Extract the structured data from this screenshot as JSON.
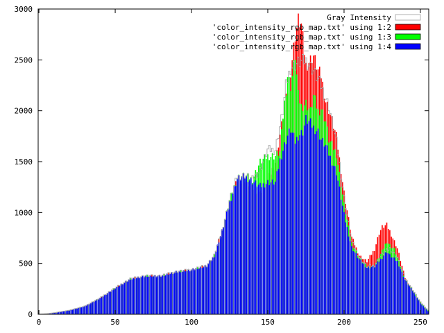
{
  "chart_data": {
    "type": "bar",
    "title": "",
    "xlabel": "",
    "ylabel": "",
    "xlim": [
      0,
      255
    ],
    "ylim": [
      0,
      3000
    ],
    "x_ticks": [
      "0",
      "50",
      "100",
      "150",
      "200",
      "250"
    ],
    "y_ticks": [
      "0",
      "500",
      "1000",
      "1500",
      "2000",
      "2500",
      "3000"
    ],
    "grid": false,
    "legend_position": "top-right",
    "series_points": [
      {
        "name": "Gray Intensity",
        "color": "#b0b0b0",
        "style": "outline-step",
        "points": [
          [
            0,
            0
          ],
          [
            5,
            5
          ],
          [
            10,
            15
          ],
          [
            20,
            40
          ],
          [
            30,
            80
          ],
          [
            40,
            160
          ],
          [
            50,
            260
          ],
          [
            60,
            350
          ],
          [
            70,
            380
          ],
          [
            80,
            380
          ],
          [
            90,
            420
          ],
          [
            100,
            440
          ],
          [
            110,
            480
          ],
          [
            115,
            580
          ],
          [
            120,
            820
          ],
          [
            125,
            1120
          ],
          [
            130,
            1350
          ],
          [
            135,
            1370
          ],
          [
            140,
            1330
          ],
          [
            145,
            1420
          ],
          [
            150,
            1620
          ],
          [
            155,
            1620
          ],
          [
            160,
            2000
          ],
          [
            162,
            2250
          ],
          [
            165,
            2430
          ],
          [
            170,
            2480
          ],
          [
            175,
            2500
          ],
          [
            180,
            2400
          ],
          [
            185,
            2250
          ],
          [
            190,
            2050
          ],
          [
            195,
            1700
          ],
          [
            200,
            1150
          ],
          [
            205,
            720
          ],
          [
            210,
            560
          ],
          [
            215,
            470
          ],
          [
            220,
            480
          ],
          [
            225,
            590
          ],
          [
            230,
            650
          ],
          [
            235,
            560
          ],
          [
            240,
            350
          ],
          [
            245,
            240
          ],
          [
            250,
            120
          ],
          [
            255,
            40
          ]
        ]
      },
      {
        "name": "'color_intensity_rgb_map.txt' using 1:2",
        "color": "#ff0000",
        "style": "bar",
        "points": [
          [
            0,
            0
          ],
          [
            5,
            5
          ],
          [
            10,
            15
          ],
          [
            20,
            40
          ],
          [
            30,
            80
          ],
          [
            40,
            160
          ],
          [
            50,
            260
          ],
          [
            60,
            350
          ],
          [
            70,
            380
          ],
          [
            80,
            380
          ],
          [
            90,
            420
          ],
          [
            100,
            440
          ],
          [
            110,
            480
          ],
          [
            115,
            580
          ],
          [
            120,
            820
          ],
          [
            125,
            1100
          ],
          [
            130,
            1320
          ],
          [
            135,
            1330
          ],
          [
            140,
            1250
          ],
          [
            145,
            1200
          ],
          [
            150,
            1320
          ],
          [
            155,
            1500
          ],
          [
            160,
            1950
          ],
          [
            163,
            2200
          ],
          [
            165,
            2400
          ],
          [
            168,
            2750
          ],
          [
            170,
            2900
          ],
          [
            172,
            2850
          ],
          [
            175,
            2450
          ],
          [
            180,
            2550
          ],
          [
            183,
            2400
          ],
          [
            185,
            2350
          ],
          [
            188,
            2100
          ],
          [
            190,
            2020
          ],
          [
            195,
            1750
          ],
          [
            200,
            1200
          ],
          [
            205,
            760
          ],
          [
            210,
            580
          ],
          [
            215,
            520
          ],
          [
            220,
            640
          ],
          [
            223,
            800
          ],
          [
            225,
            860
          ],
          [
            228,
            880
          ],
          [
            230,
            820
          ],
          [
            235,
            650
          ],
          [
            240,
            360
          ],
          [
            245,
            240
          ],
          [
            250,
            120
          ],
          [
            255,
            40
          ]
        ]
      },
      {
        "name": "'color_intensity_rgb_map.txt' using 1:3",
        "color": "#00ff00",
        "style": "bar",
        "points": [
          [
            0,
            0
          ],
          [
            5,
            5
          ],
          [
            10,
            15
          ],
          [
            20,
            40
          ],
          [
            30,
            80
          ],
          [
            40,
            160
          ],
          [
            50,
            260
          ],
          [
            60,
            350
          ],
          [
            70,
            380
          ],
          [
            80,
            380
          ],
          [
            90,
            420
          ],
          [
            100,
            440
          ],
          [
            110,
            480
          ],
          [
            115,
            580
          ],
          [
            120,
            820
          ],
          [
            125,
            1120
          ],
          [
            130,
            1350
          ],
          [
            135,
            1370
          ],
          [
            140,
            1330
          ],
          [
            145,
            1500
          ],
          [
            150,
            1560
          ],
          [
            155,
            1560
          ],
          [
            158,
            1600
          ],
          [
            160,
            1950
          ],
          [
            163,
            2350
          ],
          [
            165,
            2250
          ],
          [
            168,
            2550
          ],
          [
            170,
            2150
          ],
          [
            172,
            2050
          ],
          [
            175,
            2080
          ],
          [
            178,
            2000
          ],
          [
            180,
            2150
          ],
          [
            183,
            2000
          ],
          [
            185,
            2030
          ],
          [
            188,
            1900
          ],
          [
            190,
            1720
          ],
          [
            195,
            1580
          ],
          [
            200,
            1080
          ],
          [
            205,
            700
          ],
          [
            210,
            560
          ],
          [
            215,
            470
          ],
          [
            220,
            480
          ],
          [
            225,
            620
          ],
          [
            228,
            720
          ],
          [
            230,
            680
          ],
          [
            233,
            640
          ],
          [
            235,
            560
          ],
          [
            240,
            350
          ],
          [
            245,
            240
          ],
          [
            250,
            120
          ],
          [
            255,
            40
          ]
        ]
      },
      {
        "name": "'color_intensity_rgb_map.txt' using 1:4",
        "color": "#0000ff",
        "style": "bar",
        "points": [
          [
            0,
            0
          ],
          [
            5,
            5
          ],
          [
            10,
            15
          ],
          [
            20,
            40
          ],
          [
            30,
            80
          ],
          [
            40,
            160
          ],
          [
            50,
            260
          ],
          [
            60,
            350
          ],
          [
            70,
            380
          ],
          [
            80,
            380
          ],
          [
            90,
            420
          ],
          [
            100,
            440
          ],
          [
            110,
            480
          ],
          [
            115,
            580
          ],
          [
            120,
            820
          ],
          [
            125,
            1100
          ],
          [
            130,
            1340
          ],
          [
            135,
            1360
          ],
          [
            140,
            1310
          ],
          [
            145,
            1260
          ],
          [
            150,
            1300
          ],
          [
            155,
            1300
          ],
          [
            158,
            1520
          ],
          [
            160,
            1620
          ],
          [
            163,
            1760
          ],
          [
            165,
            1820
          ],
          [
            168,
            1700
          ],
          [
            170,
            1760
          ],
          [
            173,
            1800
          ],
          [
            175,
            1920
          ],
          [
            178,
            1880
          ],
          [
            180,
            1840
          ],
          [
            183,
            1800
          ],
          [
            185,
            1720
          ],
          [
            188,
            1660
          ],
          [
            190,
            1580
          ],
          [
            195,
            1400
          ],
          [
            200,
            980
          ],
          [
            205,
            660
          ],
          [
            210,
            540
          ],
          [
            215,
            460
          ],
          [
            220,
            470
          ],
          [
            225,
            560
          ],
          [
            228,
            620
          ],
          [
            230,
            580
          ],
          [
            235,
            520
          ],
          [
            240,
            340
          ],
          [
            245,
            230
          ],
          [
            250,
            110
          ],
          [
            255,
            30
          ]
        ]
      }
    ]
  }
}
